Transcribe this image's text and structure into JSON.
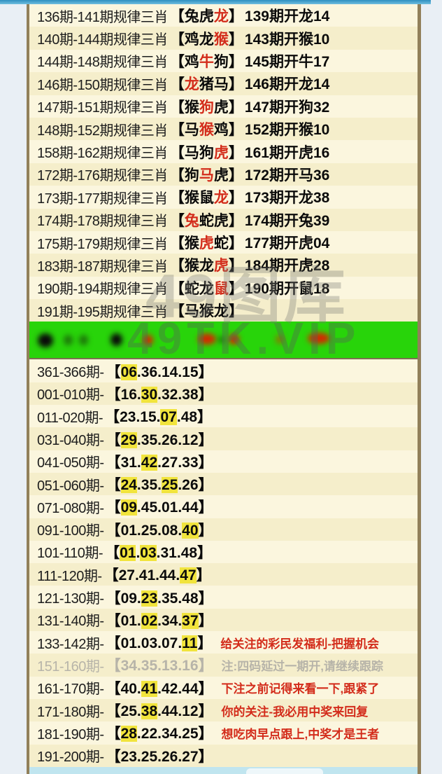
{
  "page": {
    "watermark_center": "49图库",
    "watermark_banner": "49TK.VIP",
    "bracket_open": "【",
    "bracket_close": "】",
    "number_separator": "."
  },
  "colors": {
    "accent_red": "#d32c1b",
    "highlight_yellow": "#f1e43c",
    "banner_green": "#28d40a",
    "row_cream": "#faf4d8",
    "dim_gray": "#b7b4a9",
    "border_brown": "#7d6f52",
    "topbar_blue": "#4ba3cf"
  },
  "rule_rows": [
    {
      "range": "136期-141期规律三肖",
      "zodiacs": [
        "兔",
        "虎",
        "龙"
      ],
      "red_indices": [
        2
      ],
      "result": "139期开龙14"
    },
    {
      "range": "140期-144期规律三肖",
      "zodiacs": [
        "鸡",
        "龙",
        "猴"
      ],
      "red_indices": [
        2
      ],
      "result": "143期开猴10"
    },
    {
      "range": "144期-148期规律三肖",
      "zodiacs": [
        "鸡",
        "牛",
        "狗"
      ],
      "red_indices": [
        1
      ],
      "result": "145期开牛17"
    },
    {
      "range": "146期-150期规律三肖",
      "zodiacs": [
        "龙",
        "猪",
        "马"
      ],
      "red_indices": [
        0
      ],
      "result": "146期开龙14"
    },
    {
      "range": "147期-151期规律三肖",
      "zodiacs": [
        "猴",
        "狗",
        "虎"
      ],
      "red_indices": [
        1
      ],
      "result": "147期开狗32"
    },
    {
      "range": "148期-152期规律三肖",
      "zodiacs": [
        "马",
        "猴",
        "鸡"
      ],
      "red_indices": [
        1
      ],
      "result": "152期开猴10"
    },
    {
      "range": "158期-162期规律三肖",
      "zodiacs": [
        "马",
        "狗",
        "虎"
      ],
      "red_indices": [
        2
      ],
      "result": "161期开虎16"
    },
    {
      "range": "172期-176期规律三肖",
      "zodiacs": [
        "狗",
        "马",
        "虎"
      ],
      "red_indices": [
        1
      ],
      "result": "172期开马36"
    },
    {
      "range": "173期-177期规律三肖",
      "zodiacs": [
        "猴",
        "鼠",
        "龙"
      ],
      "red_indices": [
        2
      ],
      "result": "173期开龙38"
    },
    {
      "range": "174期-178期规律三肖",
      "zodiacs": [
        "兔",
        "蛇",
        "虎"
      ],
      "red_indices": [
        0
      ],
      "result": "174期开兔39"
    },
    {
      "range": "175期-179期规律三肖",
      "zodiacs": [
        "猴",
        "虎",
        "蛇"
      ],
      "red_indices": [
        1
      ],
      "result": "177期开虎04"
    },
    {
      "range": "183期-187期规律三肖",
      "zodiacs": [
        "猴",
        "龙",
        "虎"
      ],
      "red_indices": [
        2
      ],
      "result": "184期开虎28"
    },
    {
      "range": "190期-194期规律三肖",
      "zodiacs": [
        "蛇",
        "龙",
        "鼠"
      ],
      "red_indices": [
        2
      ],
      "result": "190期开鼠18"
    },
    {
      "range": "191期-195期规律三肖",
      "zodiacs": [
        "马",
        "猴",
        "龙"
      ],
      "red_indices": [],
      "result": ""
    }
  ],
  "number_rows": [
    {
      "label": "361-366期-",
      "numbers": [
        "06",
        "36",
        "14",
        "15"
      ],
      "highlights": [
        0
      ],
      "note": "",
      "note_style": "",
      "dimmed": false
    },
    {
      "label": "001-010期-",
      "numbers": [
        "16",
        "30",
        "32",
        "38"
      ],
      "highlights": [
        1
      ],
      "note": "",
      "note_style": "",
      "dimmed": false
    },
    {
      "label": "011-020期-",
      "numbers": [
        "23",
        "15",
        "07",
        "48"
      ],
      "highlights": [
        2
      ],
      "note": "",
      "note_style": "",
      "dimmed": false
    },
    {
      "label": "031-040期-",
      "numbers": [
        "29",
        "35",
        "26",
        "12"
      ],
      "highlights": [
        0
      ],
      "note": "",
      "note_style": "",
      "dimmed": false
    },
    {
      "label": "041-050期-",
      "numbers": [
        "31",
        "42",
        "27",
        "33"
      ],
      "highlights": [
        1
      ],
      "note": "",
      "note_style": "",
      "dimmed": false
    },
    {
      "label": "051-060期-",
      "numbers": [
        "24",
        "35",
        "25",
        "26"
      ],
      "highlights": [
        0,
        2
      ],
      "note": "",
      "note_style": "",
      "dimmed": false
    },
    {
      "label": "071-080期-",
      "numbers": [
        "09",
        "45",
        "01",
        "44"
      ],
      "highlights": [
        0
      ],
      "note": "",
      "note_style": "",
      "dimmed": false
    },
    {
      "label": "091-100期-",
      "numbers": [
        "01",
        "25",
        "08",
        "40"
      ],
      "highlights": [
        3
      ],
      "note": "",
      "note_style": "",
      "dimmed": false
    },
    {
      "label": "101-110期-",
      "numbers": [
        "01",
        "03",
        "31",
        "48"
      ],
      "highlights": [
        0,
        1
      ],
      "note": "",
      "note_style": "",
      "dimmed": false
    },
    {
      "label": "111-120期-",
      "numbers": [
        "27",
        "41",
        "44",
        "47"
      ],
      "highlights": [
        3
      ],
      "note": "",
      "note_style": "",
      "dimmed": false
    },
    {
      "label": "121-130期-",
      "numbers": [
        "09",
        "23",
        "35",
        "48"
      ],
      "highlights": [
        1
      ],
      "note": "",
      "note_style": "",
      "dimmed": false
    },
    {
      "label": "131-140期-",
      "numbers": [
        "01",
        "02",
        "34",
        "37"
      ],
      "highlights": [
        1,
        3
      ],
      "note": "",
      "note_style": "",
      "dimmed": false
    },
    {
      "label": "133-142期-",
      "numbers": [
        "01",
        "03",
        "07",
        "11"
      ],
      "highlights": [
        3
      ],
      "note": "给关注的彩民发福利-把握机会",
      "note_style": "red",
      "dimmed": false
    },
    {
      "label": "151-160期-",
      "numbers": [
        "34",
        "35",
        "13",
        "16"
      ],
      "highlights": [],
      "note": "注:四码延过一期开,请继续跟踪",
      "note_style": "gray",
      "dimmed": true
    },
    {
      "label": "161-170期-",
      "numbers": [
        "40",
        "41",
        "42",
        "44"
      ],
      "highlights": [
        1
      ],
      "note": "下注之前记得来看一下,跟紧了",
      "note_style": "red",
      "dimmed": false
    },
    {
      "label": "171-180期-",
      "numbers": [
        "25",
        "38",
        "44",
        "12"
      ],
      "highlights": [
        1
      ],
      "note": "你的关注-我必用中奖来回复",
      "note_style": "red",
      "dimmed": false
    },
    {
      "label": "181-190期-",
      "numbers": [
        "28",
        "22",
        "34",
        "25"
      ],
      "highlights": [
        0
      ],
      "note": "想吃肉早点跟上,中奖才是王者",
      "note_style": "red",
      "dimmed": false
    },
    {
      "label": "191-200期-",
      "numbers": [
        "23",
        "25",
        "26",
        "27"
      ],
      "highlights": [],
      "note": "",
      "note_style": "",
      "dimmed": false
    }
  ]
}
